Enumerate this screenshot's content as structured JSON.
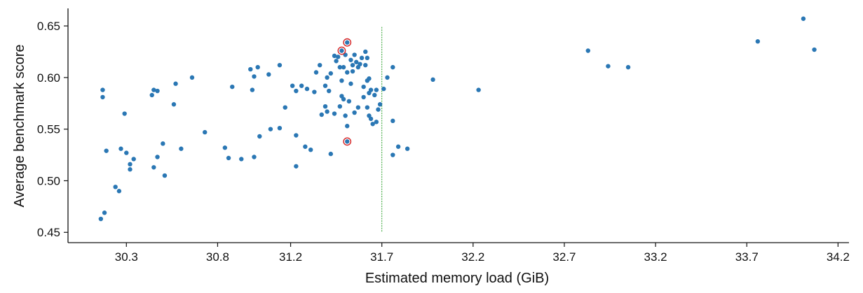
{
  "chart_data": {
    "type": "scatter",
    "xlabel": "Estimated memory load (GiB)",
    "ylabel": "Average benchmark score",
    "xlim": [
      29.98,
      34.26
    ],
    "ylim": [
      0.44,
      0.667
    ],
    "x_ticks": [
      30.3,
      30.8,
      31.2,
      31.7,
      32.2,
      32.7,
      33.2,
      33.7,
      34.2
    ],
    "x_tick_labels": [
      "30.3",
      "30.8",
      "31.2",
      "31.7",
      "32.2",
      "32.7",
      "33.2",
      "33.7",
      "34.2"
    ],
    "y_ticks": [
      0.45,
      0.5,
      0.55,
      0.6,
      0.65
    ],
    "y_tick_labels": [
      "0.45",
      "0.50",
      "0.55",
      "0.60",
      "0.65"
    ],
    "vline_x": 31.7,
    "grid": false,
    "colors": {
      "point": "#2a77b4",
      "highlight": "#d62728",
      "vline": "#2ca02c",
      "axis": "#111111"
    },
    "points": [
      [
        30.16,
        0.463
      ],
      [
        30.18,
        0.469
      ],
      [
        30.17,
        0.581
      ],
      [
        30.17,
        0.588
      ],
      [
        30.19,
        0.529
      ],
      [
        30.24,
        0.494
      ],
      [
        30.26,
        0.49
      ],
      [
        30.27,
        0.531
      ],
      [
        30.29,
        0.565
      ],
      [
        30.3,
        0.527
      ],
      [
        30.32,
        0.516
      ],
      [
        30.32,
        0.511
      ],
      [
        30.34,
        0.521
      ],
      [
        30.44,
        0.583
      ],
      [
        30.45,
        0.588
      ],
      [
        30.47,
        0.587
      ],
      [
        30.45,
        0.513
      ],
      [
        30.47,
        0.523
      ],
      [
        30.5,
        0.536
      ],
      [
        30.51,
        0.505
      ],
      [
        30.56,
        0.574
      ],
      [
        30.57,
        0.594
      ],
      [
        30.6,
        0.531
      ],
      [
        30.66,
        0.6
      ],
      [
        30.73,
        0.547
      ],
      [
        30.84,
        0.532
      ],
      [
        30.86,
        0.522
      ],
      [
        30.88,
        0.591
      ],
      [
        30.93,
        0.521
      ],
      [
        30.98,
        0.608
      ],
      [
        30.99,
        0.588
      ],
      [
        31.0,
        0.601
      ],
      [
        31.0,
        0.523
      ],
      [
        31.02,
        0.61
      ],
      [
        31.03,
        0.543
      ],
      [
        31.08,
        0.603
      ],
      [
        31.09,
        0.55
      ],
      [
        31.14,
        0.612
      ],
      [
        31.14,
        0.551
      ],
      [
        31.17,
        0.571
      ],
      [
        31.21,
        0.592
      ],
      [
        31.23,
        0.587
      ],
      [
        31.23,
        0.514
      ],
      [
        31.23,
        0.544
      ],
      [
        31.26,
        0.592
      ],
      [
        31.28,
        0.533
      ],
      [
        31.29,
        0.589
      ],
      [
        31.31,
        0.53
      ],
      [
        31.33,
        0.586
      ],
      [
        31.34,
        0.605
      ],
      [
        31.36,
        0.612
      ],
      [
        31.37,
        0.564
      ],
      [
        31.39,
        0.572
      ],
      [
        31.39,
        0.592
      ],
      [
        31.4,
        0.6
      ],
      [
        31.41,
        0.587
      ],
      [
        31.4,
        0.567
      ],
      [
        31.42,
        0.526
      ],
      [
        31.42,
        0.604
      ],
      [
        31.44,
        0.621
      ],
      [
        31.44,
        0.565
      ],
      [
        31.45,
        0.616
      ],
      [
        31.46,
        0.62
      ],
      [
        31.47,
        0.61
      ],
      [
        31.47,
        0.572
      ],
      [
        31.48,
        0.597
      ],
      [
        31.48,
        0.582
      ],
      [
        31.49,
        0.61
      ],
      [
        31.49,
        0.579
      ],
      [
        31.5,
        0.622
      ],
      [
        31.5,
        0.563
      ],
      [
        31.51,
        0.553
      ],
      [
        31.51,
        0.605
      ],
      [
        31.52,
        0.577
      ],
      [
        31.53,
        0.594
      ],
      [
        31.53,
        0.617
      ],
      [
        31.54,
        0.606
      ],
      [
        31.54,
        0.612
      ],
      [
        31.55,
        0.566
      ],
      [
        31.55,
        0.622
      ],
      [
        31.56,
        0.615
      ],
      [
        31.57,
        0.571
      ],
      [
        31.57,
        0.61
      ],
      [
        31.58,
        0.613
      ],
      [
        31.59,
        0.619
      ],
      [
        31.6,
        0.581
      ],
      [
        31.6,
        0.591
      ],
      [
        31.61,
        0.625
      ],
      [
        31.61,
        0.612
      ],
      [
        31.62,
        0.619
      ],
      [
        31.62,
        0.597
      ],
      [
        31.62,
        0.571
      ],
      [
        31.63,
        0.563
      ],
      [
        31.63,
        0.599
      ],
      [
        31.63,
        0.585
      ],
      [
        31.64,
        0.588
      ],
      [
        31.64,
        0.56
      ],
      [
        31.65,
        0.555
      ],
      [
        31.66,
        0.583
      ],
      [
        31.67,
        0.588
      ],
      [
        31.67,
        0.557
      ],
      [
        31.68,
        0.569
      ],
      [
        31.69,
        0.574
      ],
      [
        31.71,
        0.589
      ],
      [
        31.73,
        0.6
      ],
      [
        31.76,
        0.61
      ],
      [
        31.76,
        0.558
      ],
      [
        31.76,
        0.525
      ],
      [
        31.79,
        0.533
      ],
      [
        31.84,
        0.531
      ],
      [
        31.98,
        0.598
      ],
      [
        32.23,
        0.588
      ],
      [
        32.83,
        0.626
      ],
      [
        32.94,
        0.611
      ],
      [
        33.05,
        0.61
      ],
      [
        33.76,
        0.635
      ],
      [
        34.01,
        0.657
      ],
      [
        34.07,
        0.627
      ]
    ],
    "highlighted_points": [
      [
        31.51,
        0.634
      ],
      [
        31.48,
        0.626
      ],
      [
        31.51,
        0.538
      ]
    ]
  }
}
